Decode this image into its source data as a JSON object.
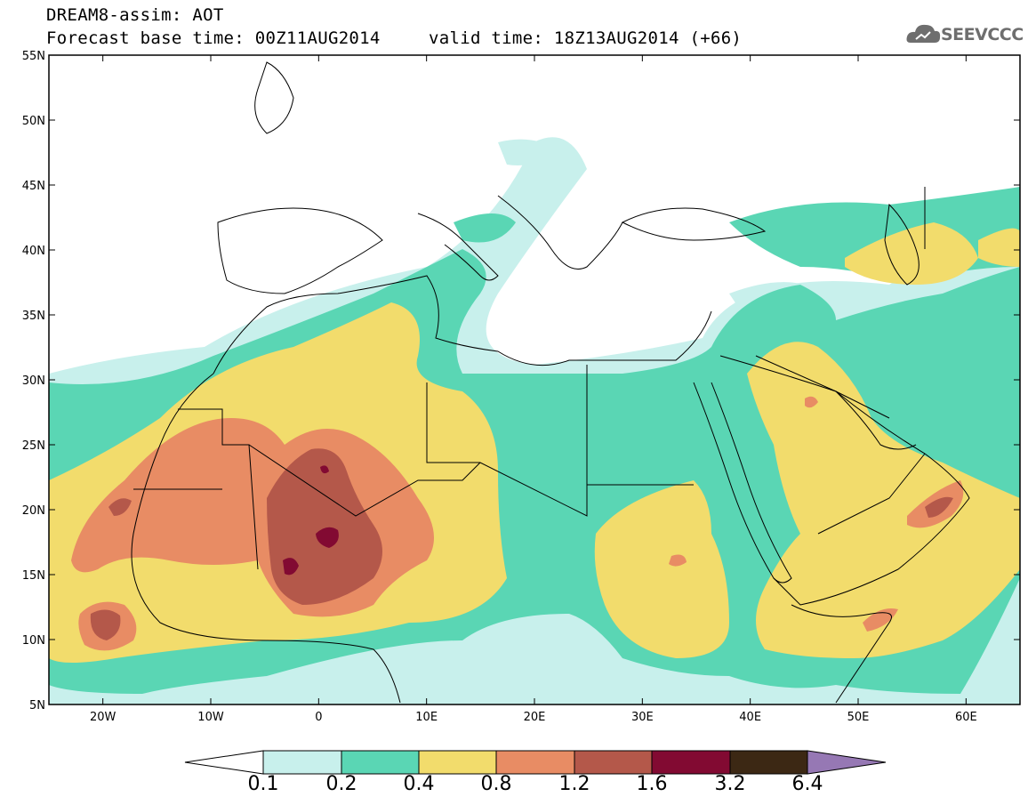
{
  "header": {
    "title": "DREAM8-assim: AOT",
    "base_time": "Forecast base time: 00Z11AUG2014",
    "valid_time": "valid time: 18Z13AUG2014 (+66)",
    "logo_text": "SEEVCCC"
  },
  "map": {
    "lat_labels": [
      "55N",
      "50N",
      "45N",
      "40N",
      "35N",
      "30N",
      "25N",
      "20N",
      "15N",
      "10N",
      "5N"
    ],
    "lon_labels": [
      "20W",
      "10W",
      "0",
      "10E",
      "20E",
      "30E",
      "40E",
      "50E",
      "60E"
    ],
    "lat_range": [
      5,
      55
    ],
    "lon_range": [
      -25,
      65
    ]
  },
  "legend": {
    "levels": [
      "0.1",
      "0.2",
      "0.4",
      "0.8",
      "1.2",
      "1.6",
      "3.2",
      "6.4"
    ],
    "colors": {
      "below": "#ffffff",
      "c1": "#c8f0ec",
      "c2": "#5ad6b4",
      "c3": "#f2dc6c",
      "c4": "#e88c64",
      "c5": "#b4584a",
      "c6": "#820a32",
      "c7": "#3c2814",
      "above": "#9678b4"
    }
  }
}
